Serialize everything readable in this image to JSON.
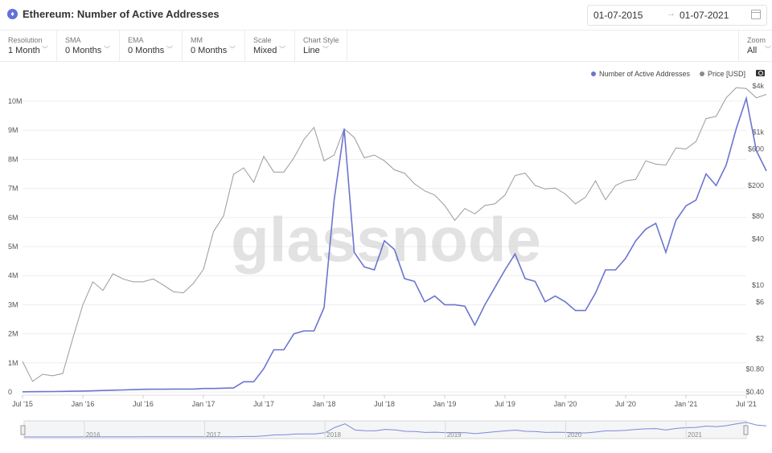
{
  "header": {
    "title": "Ethereum: Number of Active Addresses",
    "date_from": "01-07-2015",
    "date_to": "01-07-2021"
  },
  "toolbar": {
    "controls": [
      {
        "label": "Resolution",
        "value": "1 Month"
      },
      {
        "label": "SMA",
        "value": "0 Months"
      },
      {
        "label": "EMA",
        "value": "0 Months"
      },
      {
        "label": "MM",
        "value": "0 Months"
      },
      {
        "label": "Scale",
        "value": "Mixed"
      },
      {
        "label": "Chart Style",
        "value": "Line"
      }
    ],
    "zoom": {
      "label": "Zoom",
      "value": "All"
    }
  },
  "legend": {
    "active": "Number of Active Addresses",
    "price": "Price [USD]"
  },
  "watermark": "glassnode",
  "colors": {
    "active": "#6b75cf",
    "price": "#9a9a9a",
    "grid": "#eeeeee",
    "accent": "#6270d9"
  },
  "icons": {
    "camera": "camera-icon",
    "calendar": "calendar-icon",
    "eth": "ethereum-icon",
    "chevron": "chevron-down-icon"
  },
  "chart_data": {
    "type": "line",
    "scale_left": "linear",
    "scale_right": "log",
    "x_start": "2015-07",
    "x_ticks": [
      "Jul '15",
      "Jan '16",
      "Jul '16",
      "Jan '17",
      "Jul '17",
      "Jan '18",
      "Jul '18",
      "Jan '19",
      "Jul '19",
      "Jan '20",
      "Jul '20",
      "Jan '21",
      "Jul '21"
    ],
    "y_left_ticks": [
      "0",
      "1M",
      "2M",
      "3M",
      "4M",
      "5M",
      "6M",
      "7M",
      "8M",
      "9M",
      "10M"
    ],
    "y_left_lim": [
      0,
      10000000
    ],
    "y_right_ticks": [
      "$0.40",
      "$0.80",
      "$2",
      "$6",
      "$10",
      "$40",
      "$80",
      "$200",
      "$600",
      "$1k",
      "$4k"
    ],
    "y_right_lim": [
      0.4,
      4000
    ],
    "navigator_labels": [
      "2016",
      "2017",
      "2018",
      "2019",
      "2020",
      "2021"
    ],
    "grid": true,
    "legend_position": "top-right",
    "series": [
      {
        "name": "Number of Active Addresses",
        "axis": "left",
        "values": [
          5000,
          8000,
          12000,
          15000,
          18000,
          25000,
          30000,
          40000,
          50000,
          60000,
          70000,
          80000,
          90000,
          95000,
          95000,
          100000,
          100000,
          100000,
          120000,
          120000,
          130000,
          140000,
          350000,
          350000,
          800000,
          1450000,
          1450000,
          2000000,
          2100000,
          2100000,
          2900000,
          6600000,
          9050000,
          4800000,
          4300000,
          4200000,
          5200000,
          4900000,
          3900000,
          3800000,
          3100000,
          3300000,
          3000000,
          3000000,
          2950000,
          2300000,
          3000000,
          3600000,
          4200000,
          4750000,
          3900000,
          3800000,
          3100000,
          3300000,
          3100000,
          2800000,
          2800000,
          3400000,
          4200000,
          4200000,
          4600000,
          5200000,
          5600000,
          5800000,
          4800000,
          5900000,
          6400000,
          6600000,
          7500000,
          7100000,
          7800000,
          9050000,
          10100000,
          8300000,
          7600000
        ]
      },
      {
        "name": "Price [USD]",
        "axis": "right",
        "values": [
          1.0,
          0.55,
          0.68,
          0.65,
          0.7,
          2.0,
          5.5,
          11,
          8.5,
          14,
          12,
          11,
          11,
          12,
          10,
          8.2,
          7.9,
          10.5,
          16,
          50,
          80,
          280,
          340,
          220,
          480,
          300,
          300,
          460,
          800,
          1150,
          420,
          500,
          1100,
          850,
          460,
          500,
          420,
          320,
          290,
          210,
          170,
          150,
          110,
          70,
          100,
          85,
          110,
          115,
          150,
          270,
          290,
          200,
          180,
          185,
          155,
          115,
          140,
          230,
          130,
          200,
          230,
          240,
          420,
          380,
          370,
          620,
          600,
          750,
          1500,
          1600,
          2800,
          3800,
          3700,
          2800,
          3100
        ]
      }
    ]
  }
}
